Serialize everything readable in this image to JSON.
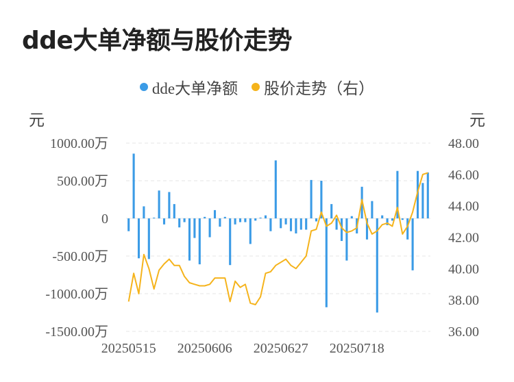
{
  "title": "dde大单净额与股价走势",
  "legend": [
    {
      "label": "dde大单净额",
      "color": "#3b9be6"
    },
    {
      "label": "股价走势（右）",
      "color": "#f5b31b"
    }
  ],
  "left_unit": "元",
  "right_unit": "元",
  "chart_data": {
    "type": "bar+line",
    "x_tick_labels": [
      "20250515",
      "20250606",
      "20250627",
      "20250718"
    ],
    "x_tick_indices": [
      0,
      15,
      30,
      45
    ],
    "left_axis": {
      "ylim": [
        -1500,
        1000
      ],
      "ticks": [
        1000,
        500,
        0,
        -500,
        -1000,
        -1500
      ],
      "tick_labels": [
        "1000.00万",
        "500.00万",
        "0",
        "-500.00万",
        "-1000.00万",
        "-1500.00万"
      ]
    },
    "right_axis": {
      "ylim": [
        36,
        48
      ],
      "ticks": [
        48,
        46,
        44,
        42,
        40,
        38,
        36
      ],
      "tick_labels": [
        "48.00",
        "46.00",
        "44.00",
        "42.00",
        "40.00",
        "38.00",
        "36.00"
      ]
    },
    "grid": true,
    "series": [
      {
        "name": "dde大单净额",
        "type": "bar",
        "color": "#3b9be6",
        "values": [
          -170,
          860,
          -530,
          160,
          -540,
          10,
          370,
          -80,
          350,
          190,
          -120,
          -50,
          -560,
          -260,
          -610,
          20,
          -250,
          110,
          -110,
          20,
          -620,
          -80,
          -50,
          -50,
          -340,
          -30,
          10,
          40,
          -170,
          770,
          -130,
          -80,
          -170,
          -200,
          -150,
          -150,
          510,
          -40,
          500,
          -1180,
          190,
          -150,
          -300,
          -560,
          30,
          -200,
          420,
          -280,
          230,
          -1250,
          40,
          -90,
          -30,
          630,
          -20,
          -280,
          -690,
          630,
          470,
          610
        ]
      },
      {
        "name": "股价走势（右）",
        "type": "line",
        "color": "#f5b31b",
        "axis": "right",
        "values": [
          37.9,
          39.7,
          38.4,
          40.9,
          40.0,
          38.7,
          39.9,
          40.3,
          40.6,
          40.2,
          40.2,
          39.5,
          39.1,
          39.0,
          38.9,
          38.9,
          39.0,
          39.4,
          39.4,
          39.4,
          37.9,
          39.2,
          38.8,
          39.0,
          37.8,
          37.7,
          38.2,
          39.7,
          39.8,
          40.2,
          40.4,
          40.6,
          40.2,
          40.0,
          40.4,
          40.8,
          42.4,
          42.5,
          43.6,
          42.7,
          42.9,
          43.4,
          42.6,
          42.3,
          42.4,
          42.6,
          44.4,
          42.9,
          42.2,
          42.4,
          42.8,
          42.9,
          42.7,
          43.9,
          42.2,
          42.7,
          43.6,
          44.9,
          46.0,
          46.1
        ]
      }
    ]
  }
}
